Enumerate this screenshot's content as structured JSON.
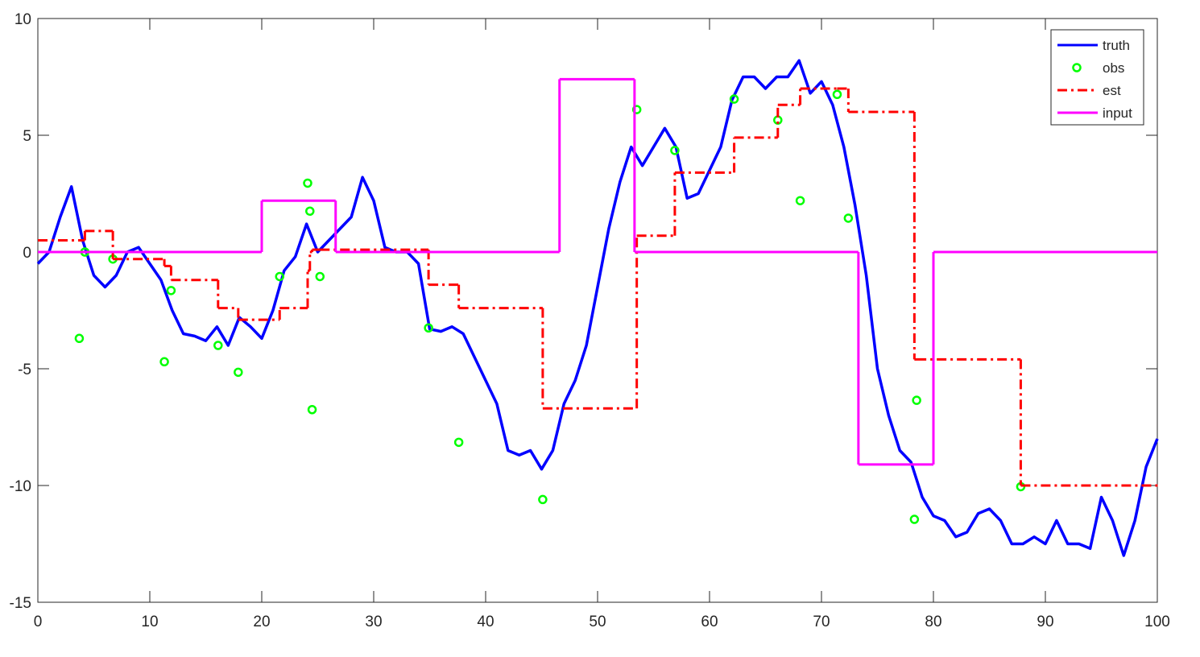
{
  "chart_data": {
    "type": "line",
    "xlim": [
      0,
      100
    ],
    "ylim": [
      -15,
      10
    ],
    "xticks": [
      0,
      10,
      20,
      30,
      40,
      50,
      60,
      70,
      80,
      90,
      100
    ],
    "yticks": [
      -15,
      -10,
      -5,
      0,
      5,
      10
    ],
    "grid": false,
    "legend": "upper right",
    "series": [
      {
        "name": "truth",
        "color": "#0000ff",
        "style": "solid",
        "x": [
          0,
          1,
          2,
          3,
          4,
          5,
          6,
          7,
          8,
          9,
          10,
          11,
          12,
          13,
          14,
          15,
          16,
          17,
          18,
          19,
          20,
          21,
          22,
          23,
          24,
          25,
          26,
          27,
          28,
          29,
          30,
          31,
          32,
          33,
          34,
          35,
          36,
          37,
          38,
          39,
          40,
          41,
          42,
          43,
          44,
          45,
          46,
          47,
          48,
          49,
          50,
          51,
          52,
          53,
          54,
          55,
          56,
          57,
          58,
          59,
          60,
          61,
          62,
          63,
          64,
          65,
          66,
          67,
          68,
          69,
          70,
          71,
          72,
          73,
          74,
          75,
          76,
          77,
          78,
          79,
          80,
          81,
          82,
          83,
          84,
          85,
          86,
          87,
          88,
          89,
          90,
          91,
          92,
          93,
          94,
          95,
          96,
          97,
          98,
          99,
          100
        ],
        "values": [
          -0.5,
          0,
          1.5,
          2.8,
          0.5,
          -1,
          -1.5,
          -1,
          0,
          0.2,
          -0.5,
          -1.2,
          -2.5,
          -3.5,
          -3.6,
          -3.8,
          -3.2,
          -4,
          -2.8,
          -3.2,
          -3.7,
          -2.5,
          -0.8,
          -0.2,
          1.2,
          0,
          0.5,
          1,
          1.5,
          3.2,
          2.2,
          0.2,
          0,
          0,
          -0.5,
          -3.3,
          -3.4,
          -3.2,
          -3.5,
          -4.5,
          -5.5,
          -6.5,
          -8.5,
          -8.7,
          -8.5,
          -9.3,
          -8.5,
          -6.5,
          -5.5,
          -4,
          -1.5,
          1,
          3,
          4.5,
          3.7,
          4.5,
          5.3,
          4.5,
          2.3,
          2.5,
          3.5,
          4.5,
          6.5,
          7.5,
          7.5,
          7,
          7.5,
          7.5,
          8.2,
          6.8,
          7.3,
          6.3,
          4.5,
          2,
          -1,
          -5,
          -7,
          -8.5,
          -9,
          -10.5,
          -11.3,
          -11.5,
          -12.2,
          -12,
          -11.2,
          -11,
          -11.5,
          -12.5,
          -12.5,
          -12.2,
          -12.5,
          -11.5,
          -12.5,
          -12.5,
          -12.7,
          -10.5,
          -11.5,
          -13,
          -11.5,
          -9.2,
          -8
        ]
      },
      {
        "name": "obs",
        "color": "#00ff00",
        "style": "marker",
        "x": [
          3.7,
          4.2,
          6.7,
          11.3,
          11.9,
          16.1,
          17.9,
          21.6,
          24.1,
          24.3,
          24.5,
          25.2,
          34.9,
          37.6,
          45.1,
          53.5,
          56.9,
          62.2,
          66.1,
          68.1,
          71.4,
          72.4,
          78.3,
          78.5,
          87.8
        ],
        "values": [
          -3.7,
          0,
          -0.3,
          -4.7,
          -1.65,
          -4,
          -5.15,
          -1.05,
          2.95,
          1.75,
          -6.75,
          -1.05,
          -3.25,
          -8.15,
          -10.6,
          6.1,
          4.35,
          6.55,
          5.65,
          2.2,
          6.75,
          1.45,
          -11.45,
          -6.35,
          -10.05
        ]
      },
      {
        "name": "est",
        "color": "#ff0000",
        "style": "dashdot-steps",
        "x": [
          0,
          4.2,
          6.7,
          11.3,
          11.9,
          16.1,
          17.9,
          21.6,
          24.1,
          24.3,
          24.5,
          25.2,
          34.9,
          37.6,
          45.1,
          53.5,
          56.9,
          62.2,
          66.1,
          68.1,
          71.4,
          72.4,
          78.3,
          78.5,
          87.8,
          100
        ],
        "values": [
          0.5,
          0.9,
          -0.3,
          -0.6,
          -1.2,
          -2.4,
          -2.9,
          -2.4,
          -0.8,
          0,
          0.1,
          0.1,
          -1.4,
          -2.4,
          -6.7,
          0.7,
          3.4,
          4.9,
          6.3,
          7,
          7,
          6,
          -4.6,
          -4.6,
          -10,
          -10
        ]
      },
      {
        "name": "input",
        "color": "#ff00ff",
        "style": "steps",
        "x": [
          0,
          20,
          26.6,
          46.6,
          53.3,
          73.3,
          80,
          100
        ],
        "values": [
          0,
          2.2,
          0,
          7.4,
          0,
          -9.1,
          0,
          0
        ]
      }
    ]
  }
}
